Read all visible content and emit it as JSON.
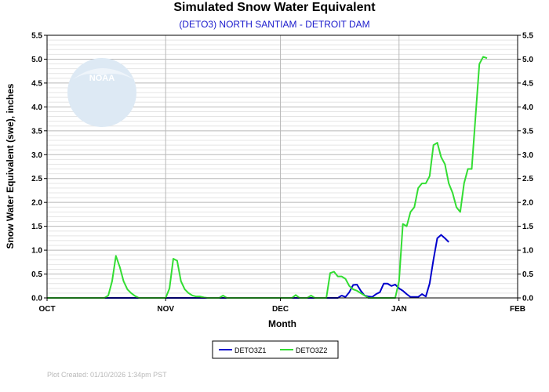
{
  "chart_data": {
    "type": "line",
    "title": "Simulated Snow Water Equivalent",
    "subtitle": "(DETO3) NORTH SANTIAM - DETROIT DAM",
    "xlabel": "Month",
    "ylabel": "Snow Water Equivalent (swe),  inches",
    "x_ticks": [
      "OCT",
      "NOV",
      "DEC",
      "JAN",
      "FEB"
    ],
    "y_ticks": [
      "0.0",
      "0.5",
      "1.0",
      "1.5",
      "2.0",
      "2.5",
      "3.0",
      "3.5",
      "4.0",
      "4.5",
      "5.0",
      "5.5"
    ],
    "xlim": [
      "2025-10-01",
      "2026-02-01"
    ],
    "ylim": [
      0,
      5.5
    ],
    "grid": true,
    "legend_position": "bottom-center",
    "series": [
      {
        "name": "DETO3Z1",
        "color": "#0000cc",
        "points": [
          [
            "2025-10-01",
            0
          ],
          [
            "2025-12-16",
            0
          ],
          [
            "2025-12-17",
            0.05
          ],
          [
            "2025-12-18",
            0.02
          ],
          [
            "2025-12-19",
            0.12
          ],
          [
            "2025-12-20",
            0.27
          ],
          [
            "2025-12-21",
            0.28
          ],
          [
            "2025-12-22",
            0.15
          ],
          [
            "2025-12-23",
            0.05
          ],
          [
            "2025-12-24",
            0.03
          ],
          [
            "2025-12-25",
            0.02
          ],
          [
            "2025-12-26",
            0.08
          ],
          [
            "2025-12-27",
            0.12
          ],
          [
            "2025-12-28",
            0.3
          ],
          [
            "2025-12-29",
            0.3
          ],
          [
            "2025-12-30",
            0.25
          ],
          [
            "2025-12-31",
            0.28
          ],
          [
            "2026-01-01",
            0.2
          ],
          [
            "2026-01-02",
            0.15
          ],
          [
            "2026-01-03",
            0.08
          ],
          [
            "2026-01-04",
            0.02
          ],
          [
            "2026-01-05",
            0.02
          ],
          [
            "2026-01-06",
            0.02
          ],
          [
            "2026-01-07",
            0.08
          ],
          [
            "2026-01-08",
            0.03
          ],
          [
            "2026-01-09",
            0.3
          ],
          [
            "2026-01-10",
            0.8
          ],
          [
            "2026-01-11",
            1.25
          ],
          [
            "2026-01-12",
            1.32
          ],
          [
            "2026-01-13",
            1.25
          ],
          [
            "2026-01-14",
            1.17
          ]
        ]
      },
      {
        "name": "DETO3Z2",
        "color": "#33dd33",
        "points": [
          [
            "2025-10-01",
            0
          ],
          [
            "2025-10-16",
            0
          ],
          [
            "2025-10-17",
            0.05
          ],
          [
            "2025-10-18",
            0.35
          ],
          [
            "2025-10-19",
            0.88
          ],
          [
            "2025-10-20",
            0.65
          ],
          [
            "2025-10-21",
            0.35
          ],
          [
            "2025-10-22",
            0.18
          ],
          [
            "2025-10-23",
            0.1
          ],
          [
            "2025-10-24",
            0.04
          ],
          [
            "2025-10-25",
            0
          ],
          [
            "2025-11-01",
            0
          ],
          [
            "2025-11-02",
            0.2
          ],
          [
            "2025-11-03",
            0.82
          ],
          [
            "2025-11-04",
            0.78
          ],
          [
            "2025-11-05",
            0.35
          ],
          [
            "2025-11-06",
            0.18
          ],
          [
            "2025-11-07",
            0.1
          ],
          [
            "2025-11-08",
            0.05
          ],
          [
            "2025-11-09",
            0.03
          ],
          [
            "2025-11-10",
            0.03
          ],
          [
            "2025-11-11",
            0.01
          ],
          [
            "2025-11-12",
            0
          ],
          [
            "2025-11-15",
            0
          ],
          [
            "2025-11-16",
            0.05
          ],
          [
            "2025-11-17",
            0
          ],
          [
            "2025-12-04",
            0
          ],
          [
            "2025-12-05",
            0.06
          ],
          [
            "2025-12-06",
            0
          ],
          [
            "2025-12-08",
            0
          ],
          [
            "2025-12-09",
            0.05
          ],
          [
            "2025-12-10",
            0
          ],
          [
            "2025-12-13",
            0
          ],
          [
            "2025-12-14",
            0.52
          ],
          [
            "2025-12-15",
            0.55
          ],
          [
            "2025-12-16",
            0.45
          ],
          [
            "2025-12-17",
            0.45
          ],
          [
            "2025-12-18",
            0.4
          ],
          [
            "2025-12-19",
            0.25
          ],
          [
            "2025-12-20",
            0.18
          ],
          [
            "2025-12-21",
            0.15
          ],
          [
            "2025-12-22",
            0.1
          ],
          [
            "2025-12-23",
            0.05
          ],
          [
            "2025-12-24",
            0
          ],
          [
            "2025-12-31",
            0
          ],
          [
            "2026-01-01",
            0.35
          ],
          [
            "2026-01-02",
            1.55
          ],
          [
            "2026-01-03",
            1.5
          ],
          [
            "2026-01-04",
            1.8
          ],
          [
            "2026-01-05",
            1.9
          ],
          [
            "2026-01-06",
            2.3
          ],
          [
            "2026-01-07",
            2.4
          ],
          [
            "2026-01-08",
            2.4
          ],
          [
            "2026-01-09",
            2.55
          ],
          [
            "2026-01-10",
            3.2
          ],
          [
            "2026-01-11",
            3.25
          ],
          [
            "2026-01-12",
            2.95
          ],
          [
            "2026-01-13",
            2.8
          ],
          [
            "2026-01-14",
            2.4
          ],
          [
            "2026-01-15",
            2.2
          ],
          [
            "2026-01-16",
            1.9
          ],
          [
            "2026-01-17",
            1.8
          ],
          [
            "2026-01-18",
            2.4
          ],
          [
            "2026-01-19",
            2.7
          ],
          [
            "2026-01-20",
            2.7
          ],
          [
            "2026-01-21",
            3.8
          ],
          [
            "2026-01-22",
            4.9
          ],
          [
            "2026-01-23",
            5.05
          ],
          [
            "2026-01-24",
            5.02
          ]
        ]
      }
    ]
  },
  "footer": {
    "plot_created": "Plot Created: 01/10/2026 1:34pm PST"
  },
  "logo": {
    "text": "NOAA",
    "colors": {
      "light": "#d8e8f4",
      "mid": "#c0d8ec"
    }
  },
  "colors": {
    "grid_minor": "#e4e4e4",
    "grid_major": "#b8b8b8",
    "axis": "#000000"
  }
}
